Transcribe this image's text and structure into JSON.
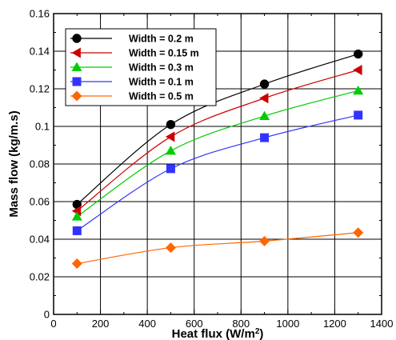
{
  "chart_data": {
    "type": "line",
    "xlabel": "Heat flux (W/m",
    "xlabel_sup": "2",
    "xlabel_tail": ")",
    "ylabel": "Mass flow (kg/m.s)",
    "xlim": [
      0,
      1400
    ],
    "ylim": [
      0,
      0.16
    ],
    "xticks": [
      0,
      200,
      400,
      600,
      800,
      1000,
      1200,
      1400
    ],
    "yticks": [
      0,
      0.02,
      0.04,
      0.06,
      0.08,
      0.1,
      0.12,
      0.14,
      0.16
    ],
    "xtick_labels": [
      "0",
      "200",
      "400",
      "600",
      "800",
      "1000",
      "1200",
      "1400"
    ],
    "ytick_labels": [
      "0",
      "0.02",
      "0.04",
      "0.06",
      "0.08",
      "0.1",
      "0.12",
      "0.14",
      "0.16"
    ],
    "grid": true,
    "legend_position": "top-left",
    "x": [
      100,
      500,
      900,
      1300
    ],
    "series": [
      {
        "name": "Width = 0.2 m",
        "color": "#000000",
        "marker": "circle",
        "values": [
          0.0585,
          0.101,
          0.1225,
          0.1385
        ]
      },
      {
        "name": "Width = 0.15 m",
        "color": "#cc0000",
        "marker": "triangle-left",
        "values": [
          0.055,
          0.0945,
          0.115,
          0.13
        ]
      },
      {
        "name": "Width = 0.3 m",
        "color": "#00cc00",
        "marker": "triangle-up",
        "values": [
          0.052,
          0.087,
          0.1055,
          0.119
        ]
      },
      {
        "name": "Width = 0.1 m",
        "color": "#3333ff",
        "marker": "square",
        "values": [
          0.0445,
          0.0775,
          0.094,
          0.106
        ]
      },
      {
        "name": "Width = 0.5 m",
        "color": "#ff6600",
        "marker": "diamond",
        "values": [
          0.027,
          0.0355,
          0.039,
          0.0435
        ]
      }
    ]
  }
}
